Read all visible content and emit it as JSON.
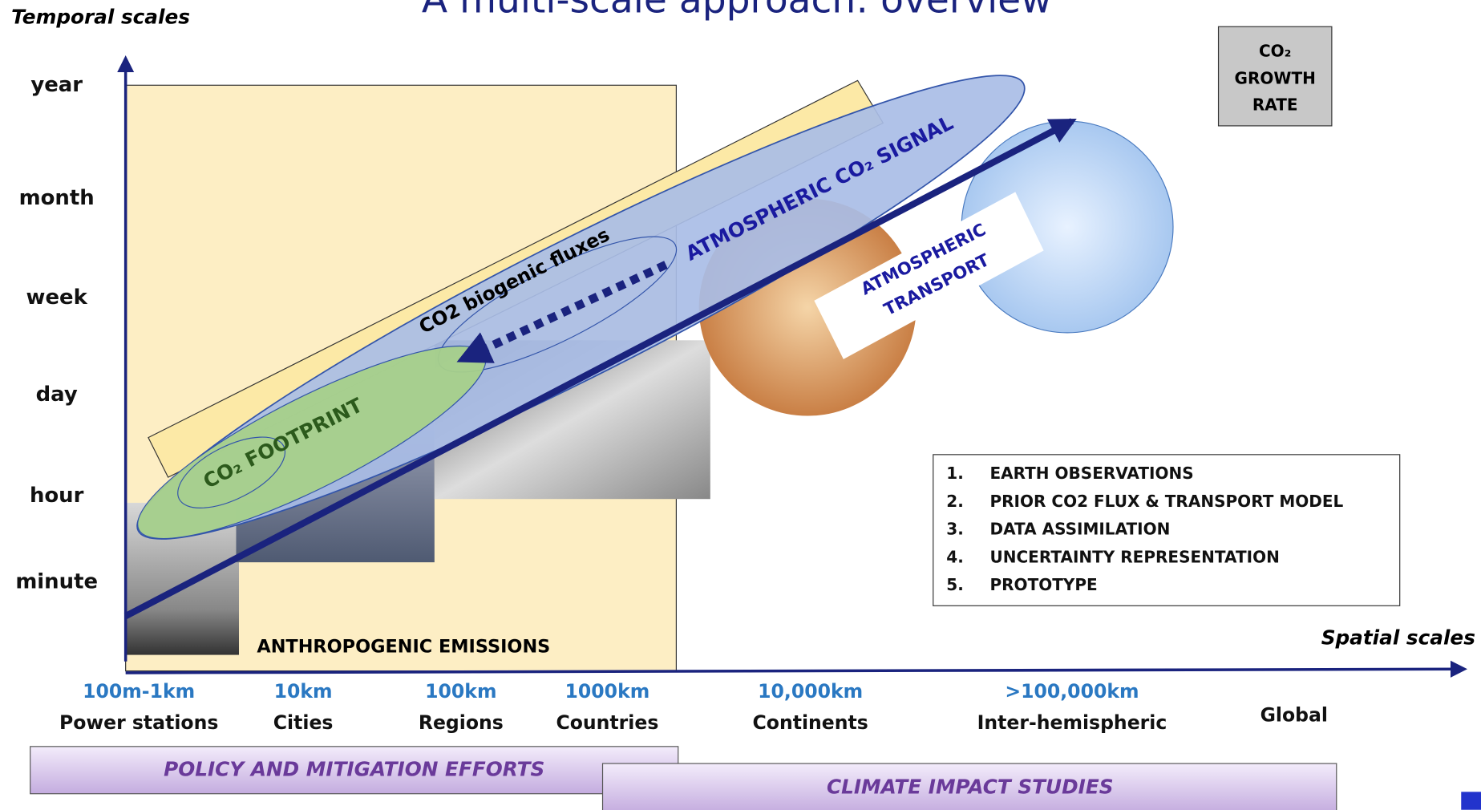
{
  "title": "A multi-scale approach: overview",
  "axes": {
    "y_label": "Temporal scales",
    "x_label": "Spatial scales"
  },
  "temporal_scales": [
    "year",
    "month",
    "week",
    "day",
    "hour",
    "minute"
  ],
  "spatial_scales": [
    {
      "distance": "100m-1km",
      "name": "Power stations"
    },
    {
      "distance": "10km",
      "name": "Cities"
    },
    {
      "distance": "100km",
      "name": "Regions"
    },
    {
      "distance": "1000km",
      "name": "Countries"
    },
    {
      "distance": "10,000km",
      "name": "Continents"
    },
    {
      "distance": ">100,000km",
      "name": "Inter-hemispheric"
    },
    {
      "name": "Global"
    }
  ],
  "regions": {
    "anthropogenic": "ANTHROPOGENIC EMISSIONS",
    "biogenic": "CO2 biogenic fluxes",
    "atmospheric_signal": "ATMOSPHERIC CO₂ SIGNAL",
    "footprint": "CO₂ FOOTPRINT",
    "transport": [
      "ATMOSPHERIC",
      "TRANSPORT"
    ]
  },
  "growth_rate_box": [
    "CO₂",
    "GROWTH",
    "RATE"
  ],
  "steps": [
    {
      "number": "1.",
      "label": "EARTH OBSERVATIONS"
    },
    {
      "number": "2.",
      "label": "PRIOR CO2 FLUX & TRANSPORT MODEL"
    },
    {
      "number": "3.",
      "label": "DATA ASSIMILATION"
    },
    {
      "number": "4.",
      "label": "UNCERTAINTY REPRESENTATION"
    },
    {
      "number": "5.",
      "label": "PROTOTYPE"
    }
  ],
  "bands": [
    "POLICY AND MITIGATION EFFORTS",
    "CLIMATE IMPACT STUDIES"
  ]
}
